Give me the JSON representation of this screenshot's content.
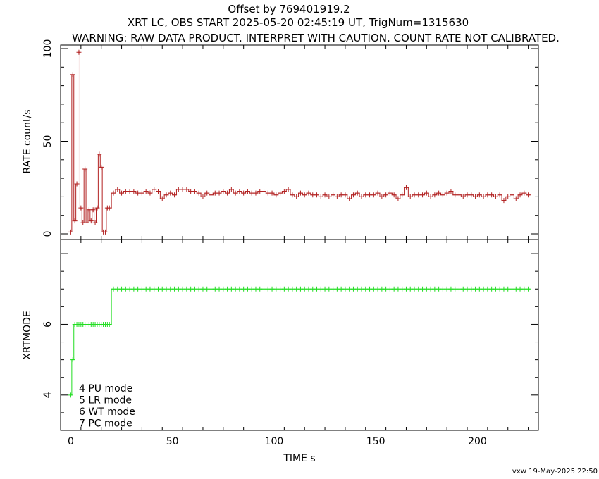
{
  "header": {
    "line1": "Offset by 769401919.2",
    "line2": "XRT LC, OBS START 2025-05-20 02:45:19 UT, TrigNum=1315630",
    "line3": "WARNING: RAW DATA PRODUCT. INTERPRET WITH CAUTION. COUNT RATE NOT CALIBRATED."
  },
  "footer": "vxw 19-May-2025 22:50",
  "colors": {
    "rate": "#b22222",
    "mode": "#22dd22",
    "axis": "#000000"
  },
  "chart_data": [
    {
      "type": "line",
      "panel": "top",
      "ylabel": "RATE  count/s",
      "xlim": [
        -5,
        230
      ],
      "ylim": [
        0,
        100
      ],
      "ytick_labels": [
        "0",
        "50",
        "100"
      ],
      "series": [
        {
          "x": [
            0,
            1,
            2,
            3,
            4,
            5,
            6,
            7,
            8,
            9,
            10,
            11,
            12,
            13,
            14,
            15,
            16,
            17,
            18,
            19,
            21,
            23,
            25,
            27,
            29,
            31,
            33,
            35,
            37,
            39,
            41,
            43,
            45,
            47,
            49,
            51,
            53,
            55,
            57,
            59,
            61,
            63,
            65,
            67,
            69,
            71,
            73,
            75,
            77,
            79,
            81,
            83,
            85,
            87,
            89,
            91,
            93,
            95,
            97,
            99,
            101,
            103,
            105,
            107,
            109,
            111,
            113,
            115,
            117,
            119,
            121,
            123,
            125,
            127,
            129,
            131,
            133,
            135,
            137,
            139,
            141,
            143,
            145,
            147,
            149,
            151,
            153,
            155,
            157,
            159,
            161,
            163,
            165,
            167,
            169,
            171,
            173,
            175,
            177,
            179,
            181,
            183,
            185,
            187,
            189,
            191,
            193,
            195,
            197,
            199,
            201,
            203,
            205,
            207,
            209,
            211,
            213,
            215,
            217,
            219,
            221,
            223,
            225
          ],
          "y": [
            1,
            86,
            7,
            27,
            98,
            14,
            6,
            35,
            6,
            13,
            7,
            13,
            6,
            14,
            43,
            36,
            1,
            1,
            14,
            14,
            22,
            24,
            22,
            23,
            23,
            23,
            22,
            22,
            23,
            22,
            24,
            23,
            19,
            21,
            22,
            21,
            24,
            24,
            24,
            23,
            23,
            22,
            20,
            22,
            21,
            22,
            22,
            23,
            22,
            24,
            22,
            23,
            22,
            23,
            22,
            22,
            23,
            23,
            22,
            22,
            21,
            22,
            23,
            24,
            21,
            20,
            22,
            21,
            22,
            21,
            21,
            20,
            21,
            20,
            21,
            20,
            21,
            21,
            19,
            21,
            22,
            20,
            21,
            21,
            21,
            22,
            20,
            21,
            22,
            21,
            19,
            21,
            25,
            20,
            21,
            21,
            21,
            22,
            20,
            21,
            22,
            21,
            22,
            23,
            21,
            21,
            20,
            21,
            21,
            20,
            21,
            20,
            21,
            21,
            20,
            21,
            18,
            20,
            21,
            19,
            21,
            22,
            21
          ]
        }
      ]
    },
    {
      "type": "line",
      "panel": "bottom",
      "xlabel": "TIME  s",
      "ylabel": "XRTMODE",
      "xlim": [
        -5,
        230
      ],
      "ylim": [
        3,
        8.4
      ],
      "xtick_labels": [
        "0",
        "50",
        "100",
        "150",
        "200"
      ],
      "ytick_labels": [
        "4",
        "6"
      ],
      "legend": [
        "4 PU mode",
        "5 LR mode",
        "6 WT mode",
        "7 PC mode"
      ],
      "series": [
        {
          "x": [
            0,
            1,
            2,
            3,
            4,
            5,
            6,
            7,
            8,
            9,
            10,
            11,
            12,
            13,
            14,
            15,
            16,
            17,
            18,
            19,
            21,
            23,
            25,
            27,
            29,
            31,
            33,
            35,
            37,
            39,
            41,
            43,
            45,
            47,
            49,
            51,
            53,
            55,
            57,
            59,
            61,
            63,
            65,
            67,
            69,
            71,
            73,
            75,
            77,
            79,
            81,
            83,
            85,
            87,
            89,
            91,
            93,
            95,
            97,
            99,
            101,
            103,
            105,
            107,
            109,
            111,
            113,
            115,
            117,
            119,
            121,
            123,
            125,
            127,
            129,
            131,
            133,
            135,
            137,
            139,
            141,
            143,
            145,
            147,
            149,
            151,
            153,
            155,
            157,
            159,
            161,
            163,
            165,
            167,
            169,
            171,
            173,
            175,
            177,
            179,
            181,
            183,
            185,
            187,
            189,
            191,
            193,
            195,
            197,
            199,
            201,
            203,
            205,
            207,
            209,
            211,
            213,
            215,
            217,
            219,
            221,
            223,
            225
          ],
          "y": [
            4,
            5,
            6,
            6,
            6,
            6,
            6,
            6,
            6,
            6,
            6,
            6,
            6,
            6,
            6,
            6,
            6,
            6,
            6,
            6,
            7,
            7,
            7,
            7,
            7,
            7,
            7,
            7,
            7,
            7,
            7,
            7,
            7,
            7,
            7,
            7,
            7,
            7,
            7,
            7,
            7,
            7,
            7,
            7,
            7,
            7,
            7,
            7,
            7,
            7,
            7,
            7,
            7,
            7,
            7,
            7,
            7,
            7,
            7,
            7,
            7,
            7,
            7,
            7,
            7,
            7,
            7,
            7,
            7,
            7,
            7,
            7,
            7,
            7,
            7,
            7,
            7,
            7,
            7,
            7,
            7,
            7,
            7,
            7,
            7,
            7,
            7,
            7,
            7,
            7,
            7,
            7,
            7,
            7,
            7,
            7,
            7,
            7,
            7,
            7,
            7,
            7,
            7,
            7,
            7,
            7,
            7,
            7,
            7,
            7,
            7,
            7,
            7,
            7,
            7,
            7,
            7,
            7,
            7,
            7,
            7,
            7,
            7
          ]
        }
      ]
    }
  ]
}
